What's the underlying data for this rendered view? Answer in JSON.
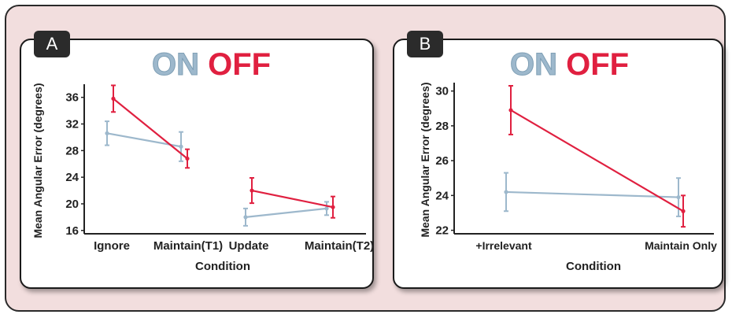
{
  "legend": {
    "on": "ON",
    "off": "OFF",
    "on_color": "#9db8cc",
    "off_color": "#e02040",
    "off_gradient_start": "#f07840"
  },
  "chart_data": [
    {
      "panel_label": "A",
      "type": "line",
      "categories": [
        "Ignore",
        "Maintain(T1)",
        "Update",
        "Maintain(T2)"
      ],
      "xlabel": "Condition",
      "ylabel": "Mean Angular Error (degrees)",
      "ylim": [
        15.5,
        37.5
      ],
      "yticks": [
        16,
        20,
        24,
        28,
        32,
        36
      ],
      "segments": [
        [
          0,
          1
        ],
        [
          2,
          3
        ]
      ],
      "series": [
        {
          "name": "ON",
          "color": "#9db8cc",
          "values": [
            30.6,
            28.6,
            18.0,
            19.3
          ],
          "err": [
            1.8,
            2.2,
            1.3,
            1.0
          ],
          "x_offset": -4
        },
        {
          "name": "OFF",
          "color": "#e02040",
          "values": [
            35.8,
            26.8,
            22.0,
            19.5
          ],
          "err": [
            2.0,
            1.4,
            1.9,
            1.6
          ],
          "x_offset": 4
        }
      ]
    },
    {
      "panel_label": "B",
      "type": "line",
      "categories": [
        "+Irrelevant",
        "Maintain Only"
      ],
      "xlabel": "Condition",
      "ylabel": "Mean Angular Error (degrees)",
      "ylim": [
        21.8,
        30.3
      ],
      "yticks": [
        22,
        24,
        26,
        28,
        30
      ],
      "segments": [
        [
          0,
          1
        ]
      ],
      "series": [
        {
          "name": "ON",
          "color": "#9db8cc",
          "values": [
            24.2,
            23.9
          ],
          "err": [
            1.1,
            1.1
          ],
          "x_offset": -3
        },
        {
          "name": "OFF",
          "color": "#e02040",
          "values": [
            28.9,
            23.1
          ],
          "err": [
            1.4,
            0.9
          ],
          "x_offset": 3
        }
      ]
    }
  ]
}
